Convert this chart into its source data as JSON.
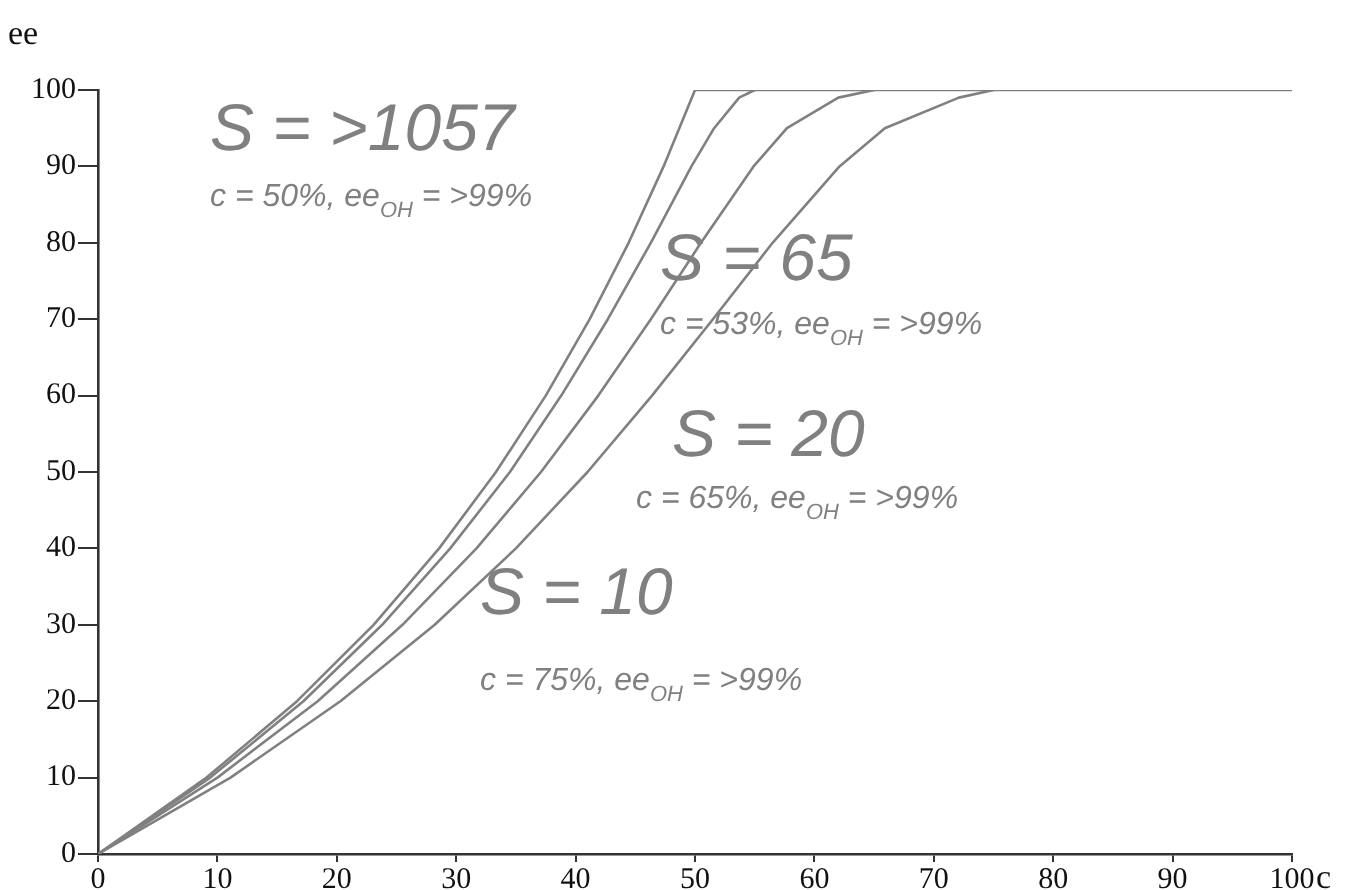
{
  "chart_data": {
    "type": "line",
    "xlabel": "c",
    "ylabel": "ee",
    "xlim": [
      0,
      100
    ],
    "ylim": [
      0,
      100
    ],
    "xticks": [
      0,
      10,
      20,
      30,
      40,
      50,
      60,
      70,
      80,
      90,
      100
    ],
    "yticks": [
      0,
      10,
      20,
      30,
      40,
      50,
      60,
      70,
      80,
      90,
      100
    ],
    "grid": false,
    "legend": false,
    "marker": "none",
    "line_style": "solid",
    "series": [
      {
        "color": "#808080",
        "x": [
          0,
          9.09,
          16.67,
          23.08,
          28.57,
          33.33,
          37.5,
          41.18,
          44.44,
          47.37,
          50,
          100
        ],
        "values": [
          0,
          10,
          20,
          30,
          40,
          50,
          60,
          70,
          80,
          90,
          100,
          100
        ]
      },
      {
        "color": "#808080",
        "x": [
          0,
          9.4,
          17.2,
          23.8,
          29.5,
          34.5,
          38.8,
          42.7,
          46.3,
          49.7,
          51.6,
          53.7,
          55
        ],
        "values": [
          0,
          10,
          20,
          30,
          40,
          50,
          60,
          70,
          80,
          90,
          95,
          99,
          100
        ]
      },
      {
        "color": "#808080",
        "x": [
          0,
          10,
          18.4,
          25.5,
          31.7,
          37.1,
          41.9,
          46.3,
          50.5,
          54.9,
          57.7,
          62,
          65
        ],
        "values": [
          0,
          10,
          20,
          30,
          40,
          50,
          60,
          70,
          80,
          90,
          95,
          99,
          100
        ]
      },
      {
        "color": "#808080",
        "x": [
          0,
          11.1,
          20.3,
          28.2,
          35,
          41,
          46.4,
          51.5,
          56.5,
          62.1,
          65.9,
          72.1,
          75
        ],
        "values": [
          0,
          10,
          20,
          30,
          40,
          50,
          60,
          70,
          80,
          90,
          95,
          99,
          100
        ]
      }
    ],
    "annotations": [
      "S = >1057",
      "c = 50%, ee$_{OH}$ = >99%",
      "S = 65",
      "c = 53%, ee$_{OH}$ = >99%",
      "S = 20",
      "c = 65%, ee$_{OH}$ = >99%",
      "S = 10",
      "c = 75%, ee$_{OH}$ = >99%"
    ]
  }
}
